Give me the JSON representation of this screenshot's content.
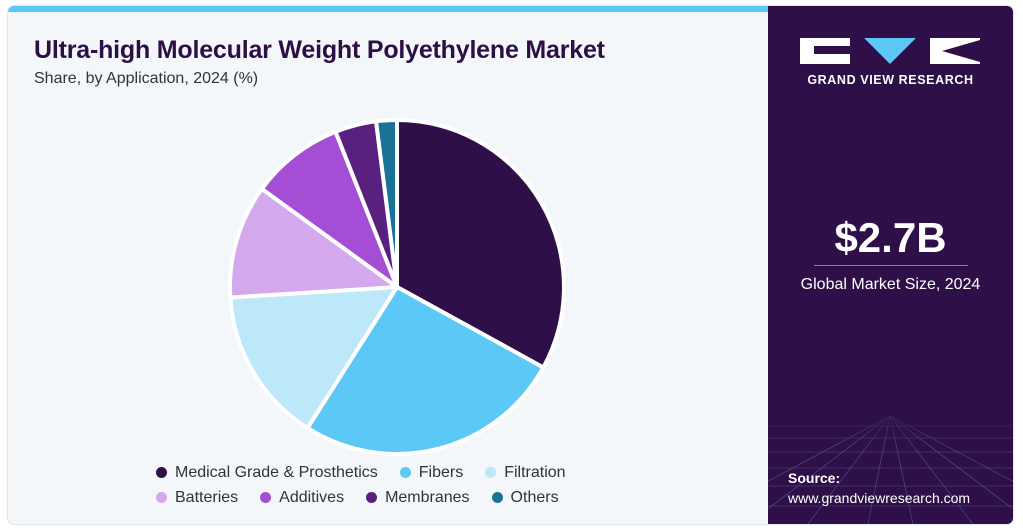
{
  "chart_data": {
    "type": "pie",
    "title": "Ultra-high Molecular Weight Polyethylene Market",
    "subtitle": "Share, by Application, 2024 (%)",
    "slices": [
      {
        "label": "Medical Grade & Prosthetics",
        "value": 33,
        "color": "#2e0f48"
      },
      {
        "label": "Fibers",
        "value": 26,
        "color": "#5bc8f5"
      },
      {
        "label": "Filtration",
        "value": 15,
        "color": "#bde8fa"
      },
      {
        "label": "Batteries",
        "value": 11,
        "color": "#d4a8ec"
      },
      {
        "label": "Additives",
        "value": 9,
        "color": "#a44ed6"
      },
      {
        "label": "Membranes",
        "value": 4,
        "color": "#5a2080"
      },
      {
        "label": "Others",
        "value": 2,
        "color": "#1a7297"
      }
    ],
    "legend_position": "bottom"
  },
  "sidebar": {
    "brand": "GRAND VIEW RESEARCH",
    "market_size": "$2.7B",
    "market_caption": "Global Market Size, 2024",
    "source_label": "Source:",
    "source_url": "www.grandviewresearch.com"
  },
  "colors": {
    "accent_bar": "#5bc8f5",
    "sidebar_bg": "#2e0f48",
    "panel_bg": "#f3f7f9"
  }
}
